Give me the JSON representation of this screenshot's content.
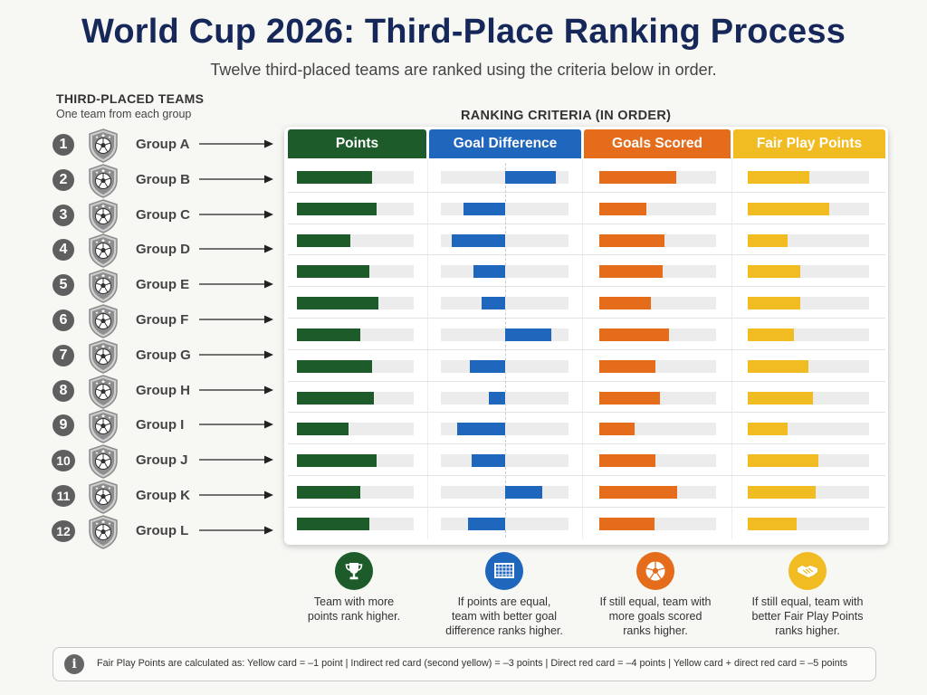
{
  "header": {
    "title": "World Cup 2026: Third-Place Ranking Process",
    "subtitle": "Twelve third-placed teams are ranked using the criteria below in order."
  },
  "teams_panel": {
    "heading": "THIRD-PLACED TEAMS",
    "subheading": "One team from each group",
    "teams": [
      {
        "rank": "1",
        "label": "Group A"
      },
      {
        "rank": "2",
        "label": "Group B"
      },
      {
        "rank": "3",
        "label": "Group C"
      },
      {
        "rank": "4",
        "label": "Group D"
      },
      {
        "rank": "5",
        "label": "Group E"
      },
      {
        "rank": "6",
        "label": "Group F"
      },
      {
        "rank": "7",
        "label": "Group G"
      },
      {
        "rank": "8",
        "label": "Group H"
      },
      {
        "rank": "9",
        "label": "Group I"
      },
      {
        "rank": "10",
        "label": "Group J"
      },
      {
        "rank": "11",
        "label": "Group K"
      },
      {
        "rank": "12",
        "label": "Group L"
      }
    ]
  },
  "criteria": {
    "heading": "RANKING CRITERIA (IN ORDER)",
    "columns": [
      {
        "label": "Points",
        "color": "#1e5b2a",
        "icon": "trophy-icon",
        "caption": [
          "Team with more",
          "points rank higher."
        ]
      },
      {
        "label": "Goal Difference",
        "color": "#1f66bd",
        "icon": "goal-net-icon",
        "caption": [
          "If points are equal,",
          "team with better goal",
          "difference ranks higher."
        ]
      },
      {
        "label": "Goals Scored",
        "color": "#e46c1b",
        "icon": "soccer-ball-icon",
        "caption": [
          "If still equal, team with",
          "more goals scored",
          "ranks higher."
        ]
      },
      {
        "label": "Fair Play Points",
        "color": "#f1bb22",
        "icon": "handshake-icon",
        "caption": [
          "If still equal, team with",
          "better Fair Play Points",
          "ranks higher."
        ]
      }
    ],
    "bar_levels": {
      "points": [
        0.64,
        0.68,
        0.46,
        0.62,
        0.7,
        0.54,
        0.64,
        0.66,
        0.44,
        0.68,
        0.54,
        0.62
      ],
      "goal_difference": [
        0.55,
        -0.45,
        -0.58,
        -0.34,
        -0.26,
        0.5,
        -0.38,
        -0.18,
        -0.52,
        -0.36,
        0.4,
        -0.4
      ],
      "goals_scored": [
        0.66,
        0.4,
        0.56,
        0.54,
        0.44,
        0.6,
        0.48,
        0.52,
        0.3,
        0.48,
        0.67,
        0.47
      ],
      "fair_play": [
        0.51,
        0.67,
        0.33,
        0.43,
        0.43,
        0.38,
        0.5,
        0.54,
        0.33,
        0.58,
        0.56,
        0.4
      ]
    }
  },
  "footer": {
    "note": "Fair Play Points are calculated as: Yellow card = –1 point  |  Indirect red card (second yellow) = –3 points  |  Direct red card = –4 points  |  Yellow card + direct red card = –5 points"
  }
}
